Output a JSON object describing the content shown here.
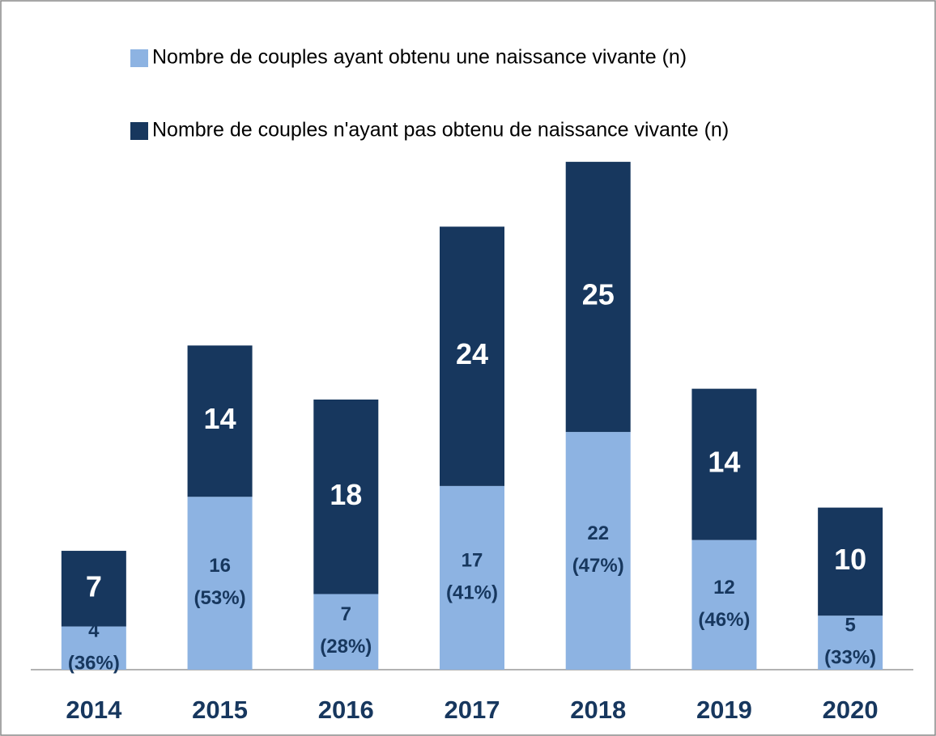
{
  "chart_data": {
    "type": "stacked_bar",
    "categories": [
      "2014",
      "2015",
      "2016",
      "2017",
      "2018",
      "2019",
      "2020"
    ],
    "series": [
      {
        "name": "Nombre de couples ayant obtenu une naissance vivante (n)",
        "color": "#8db3e2",
        "values": [
          4,
          16,
          7,
          17,
          22,
          12,
          5
        ],
        "value_labels": [
          "4 (36%)",
          "16 (53%)",
          "7 (28%)",
          "17 (41%)",
          "22 (47%)",
          "12 (46%)",
          "5 (33%)"
        ]
      },
      {
        "name": "Nombre de couples n'ayant pas obtenu de naissance vivante (n)",
        "color": "#17375e",
        "values": [
          7,
          14,
          18,
          24,
          25,
          14,
          10
        ]
      }
    ],
    "ylim": [
      0,
      50
    ]
  }
}
